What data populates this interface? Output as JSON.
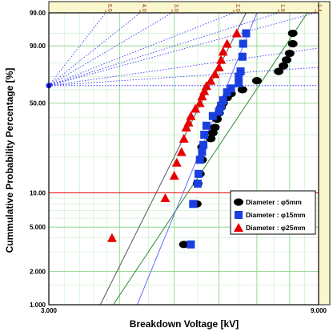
{
  "chart_data": {
    "type": "scatter",
    "subtype": "weibull-probability-plot",
    "xlabel": "Breakdown Voltage [kV]",
    "ylabel": "Cummulative Probability Percentage [%]",
    "xlim": [
      3.0,
      9.0
    ],
    "ylim": [
      1.0,
      99.0
    ],
    "x_scale": "log",
    "y_scale": "weibull",
    "x_tick_labels": [
      "3.000",
      "9.000"
    ],
    "y_ticks": [
      1.0,
      2.0,
      5.0,
      10.0,
      50.0,
      90.0,
      99.0
    ],
    "y_tick_labels": [
      "1.000",
      "2.000",
      "5.000",
      "10.00",
      "50.00",
      "90.00",
      "99.00"
    ],
    "beta_scale_labels": [
      "6.0",
      "4.0",
      "3.0",
      "2.0",
      "1.6",
      "1.4"
    ],
    "beta_right_label": "",
    "grid": true,
    "legend_position": "right",
    "series": [
      {
        "name": "Diameter : φ5mm",
        "marker": "ellipse",
        "color": "#000000",
        "x": [
          5.2,
          5.48,
          5.5,
          5.55,
          5.6,
          5.6,
          5.8,
          5.85,
          5.9,
          5.95,
          6.0,
          6.05,
          6.1,
          6.2,
          6.3,
          6.6,
          7.0,
          7.65,
          7.8,
          7.9,
          8.0,
          8.1,
          8.1
        ],
        "y": [
          3.5,
          8.0,
          12.0,
          14.5,
          19.0,
          24.0,
          28.0,
          31.0,
          34.0,
          39.0,
          43.0,
          47.0,
          50.0,
          54.0,
          57.0,
          60.0,
          67.0,
          74.0,
          78.0,
          82.0,
          86.0,
          91.0,
          95.0
        ]
      },
      {
        "name": "Diameter : φ15mm",
        "marker": "square",
        "color": "#1a3fe0",
        "x": [
          5.35,
          5.4,
          5.5,
          5.52,
          5.55,
          5.6,
          5.63,
          5.65,
          5.7,
          5.85,
          6.0,
          6.05,
          6.1,
          6.2,
          6.3,
          6.5,
          6.5,
          6.55,
          6.6,
          6.62,
          6.7
        ],
        "y": [
          3.5,
          8.0,
          12.0,
          14.5,
          19.0,
          22.0,
          25.0,
          30.0,
          35.0,
          41.0,
          44.0,
          48.0,
          52.0,
          58.0,
          61.0,
          65.0,
          70.0,
          74.0,
          84.0,
          91.0,
          95.0
        ]
      },
      {
        "name": "Diameter : φ25mm",
        "marker": "triangle",
        "color": "#e60000",
        "x": [
          3.88,
          4.82,
          5.0,
          5.05,
          5.15,
          5.2,
          5.25,
          5.3,
          5.35,
          5.45,
          5.55,
          5.6,
          5.65,
          5.7,
          5.8,
          5.9,
          6.0,
          6.05,
          6.1,
          6.2,
          6.45
        ],
        "y": [
          4.0,
          9.0,
          14.0,
          18.0,
          22.0,
          28.0,
          34.0,
          37.0,
          41.0,
          46.0,
          50.0,
          55.0,
          59.0,
          63.0,
          67.0,
          72.0,
          77.0,
          82.0,
          87.0,
          91.0,
          95.0
        ]
      }
    ],
    "fit_lines": [
      {
        "series": "Diameter : φ5mm",
        "color": "#2e8b2e",
        "x": [
          3.9,
          8.6
        ],
        "y": [
          1.0,
          99.0
        ]
      },
      {
        "series": "Diameter : φ15mm",
        "color": "#6b6bff",
        "x": [
          4.3,
          7.0
        ],
        "y": [
          1.0,
          99.0
        ]
      },
      {
        "series": "Diameter : φ25mm",
        "color": "#555555",
        "x": [
          3.7,
          6.7
        ],
        "y": [
          1.0,
          99.0
        ]
      }
    ]
  }
}
